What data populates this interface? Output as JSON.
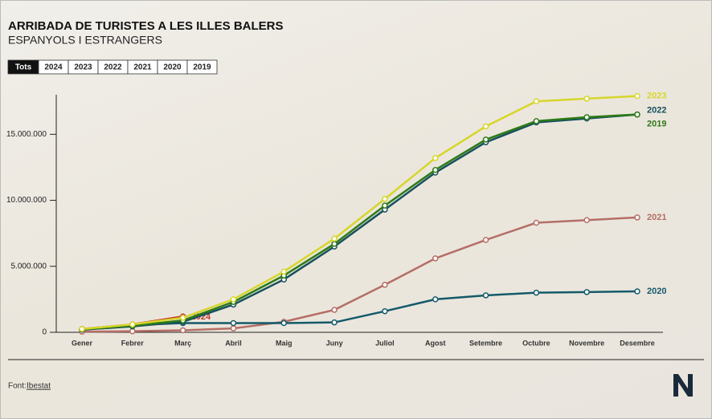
{
  "chart_data": {
    "type": "line",
    "title": "ARRIBADA DE TURISTES A LES ILLES BALERS",
    "subtitle": "ESPANYOLS I ESTRANGERS",
    "categories": [
      "Gener",
      "Febrer",
      "Març",
      "Abril",
      "Maig",
      "Juny",
      "Juliol",
      "Agost",
      "Setembre",
      "Octubre",
      "Novembre",
      "Desembre"
    ],
    "series": [
      {
        "name": "2024",
        "color": "#c0392b",
        "values": [
          250000,
          600000,
          1200000,
          null,
          null,
          null,
          null,
          null,
          null,
          null,
          null,
          null
        ]
      },
      {
        "name": "2021",
        "color": "#b56e66",
        "values": [
          50000,
          80000,
          150000,
          300000,
          800000,
          1700000,
          3600000,
          5600000,
          7000000,
          8300000,
          8500000,
          8700000
        ]
      },
      {
        "name": "2020",
        "color": "#145a6a",
        "values": [
          200000,
          550000,
          700000,
          700000,
          700000,
          750000,
          1600000,
          2500000,
          2800000,
          3000000,
          3050000,
          3100000
        ]
      },
      {
        "name": "2022",
        "color": "#16505e",
        "values": [
          200000,
          450000,
          800000,
          2100000,
          4000000,
          6500000,
          9300000,
          12100000,
          14400000,
          15900000,
          16200000,
          16500000
        ]
      },
      {
        "name": "2019",
        "color": "#2d7a18",
        "values": [
          220000,
          500000,
          900000,
          2300000,
          4300000,
          6700000,
          9600000,
          12300000,
          14600000,
          16000000,
          16300000,
          16500000
        ]
      },
      {
        "name": "2023",
        "color": "#d6d62a",
        "values": [
          250000,
          600000,
          1100000,
          2500000,
          4600000,
          7100000,
          10100000,
          13200000,
          15600000,
          17500000,
          17700000,
          17900000
        ]
      }
    ],
    "ylim": [
      0,
      18000000
    ],
    "yticks": [
      0,
      {
        "value": 5000000,
        "label": "5.000.000"
      },
      {
        "value": 10000000,
        "label": "10.000.000"
      },
      {
        "value": 15000000,
        "label": "15.000.000"
      }
    ],
    "grid": false
  },
  "tabs": [
    "Tots",
    "2024",
    "2023",
    "2022",
    "2021",
    "2020",
    "2019"
  ],
  "source": {
    "label": "Font:",
    "link": "Ibestat"
  }
}
